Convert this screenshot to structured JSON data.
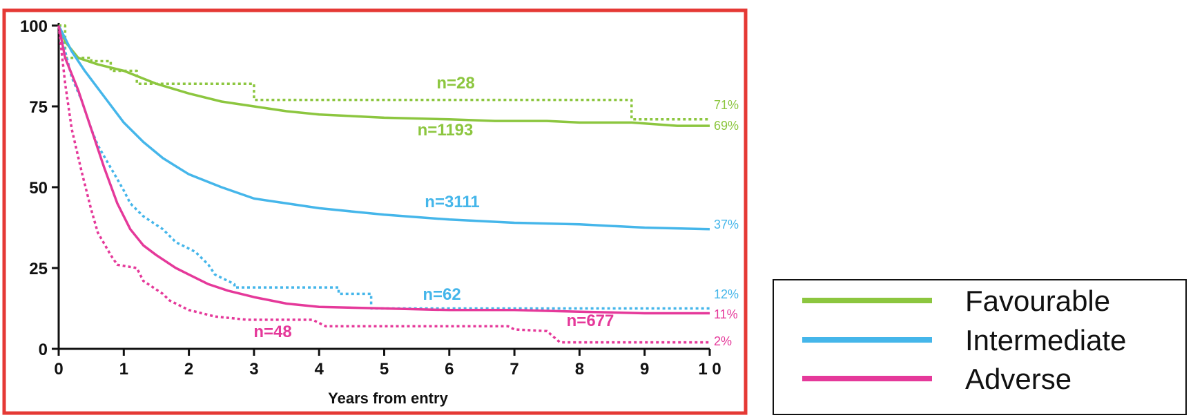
{
  "chart_data": {
    "type": "line",
    "title": "",
    "xlabel": "Years from entry",
    "ylabel": "",
    "xlim": [
      0,
      10
    ],
    "ylim": [
      0,
      100
    ],
    "x_ticks": [
      0,
      1,
      2,
      3,
      4,
      5,
      6,
      7,
      8,
      9,
      10
    ],
    "x_tick_labels": [
      "0",
      "1",
      "2",
      "3",
      "4",
      "5",
      "6",
      "7",
      "8",
      "9",
      "1 0"
    ],
    "y_ticks": [
      0,
      25,
      50,
      75,
      100
    ],
    "y_tick_labels": [
      "0",
      "25",
      "50",
      "75",
      "100"
    ],
    "grid": false,
    "frame_color": "#e53935",
    "legend": {
      "position": "bottom-right",
      "entries": [
        {
          "label": "Favourable",
          "color": "#8cc63f"
        },
        {
          "label": "Intermediate",
          "color": "#45b6ea"
        },
        {
          "label": "Adverse",
          "color": "#e5399a"
        }
      ]
    },
    "series": [
      {
        "group": "Favourable",
        "style": "solid",
        "color": "#8cc63f",
        "annotation": "n=1193",
        "end_label": "69%",
        "points": [
          [
            0,
            100
          ],
          [
            0.1,
            95
          ],
          [
            0.3,
            90
          ],
          [
            0.6,
            88
          ],
          [
            1.0,
            86
          ],
          [
            1.5,
            82
          ],
          [
            2.0,
            79
          ],
          [
            2.5,
            76.5
          ],
          [
            3.0,
            75
          ],
          [
            3.5,
            73.5
          ],
          [
            4.0,
            72.5
          ],
          [
            5.0,
            71.5
          ],
          [
            6.0,
            71
          ],
          [
            6.7,
            70.5
          ],
          [
            7.5,
            70.5
          ],
          [
            8.0,
            70
          ],
          [
            8.8,
            70
          ],
          [
            9.5,
            69
          ],
          [
            10,
            69
          ]
        ]
      },
      {
        "group": "Favourable",
        "style": "dotted",
        "color": "#8cc63f",
        "annotation": "n=28",
        "end_label": "71%",
        "points": [
          [
            0,
            100
          ],
          [
            0.1,
            100
          ],
          [
            0.1,
            90
          ],
          [
            0.5,
            90
          ],
          [
            0.5,
            89
          ],
          [
            0.8,
            89
          ],
          [
            0.8,
            86
          ],
          [
            1.2,
            86
          ],
          [
            1.2,
            82
          ],
          [
            3.0,
            82
          ],
          [
            3.0,
            77
          ],
          [
            8.8,
            77
          ],
          [
            8.8,
            71
          ],
          [
            10,
            71
          ]
        ]
      },
      {
        "group": "Intermediate",
        "style": "solid",
        "color": "#45b6ea",
        "annotation": "n=3111",
        "end_label": "37%",
        "points": [
          [
            0,
            100
          ],
          [
            0.2,
            92
          ],
          [
            0.4,
            86
          ],
          [
            0.7,
            78
          ],
          [
            1.0,
            70
          ],
          [
            1.3,
            64
          ],
          [
            1.6,
            59
          ],
          [
            2.0,
            54
          ],
          [
            2.5,
            50
          ],
          [
            3.0,
            46.5
          ],
          [
            3.5,
            45
          ],
          [
            4.0,
            43.5
          ],
          [
            5.0,
            41.5
          ],
          [
            6.0,
            40
          ],
          [
            7.0,
            39
          ],
          [
            8.0,
            38.5
          ],
          [
            9.0,
            37.5
          ],
          [
            10,
            37
          ]
        ]
      },
      {
        "group": "Intermediate",
        "style": "dotted",
        "color": "#45b6ea",
        "annotation": "n=62",
        "end_label": "12%",
        "points": [
          [
            0,
            100
          ],
          [
            0.2,
            84
          ],
          [
            0.35,
            77
          ],
          [
            0.5,
            68
          ],
          [
            0.6,
            63
          ],
          [
            0.8,
            56
          ],
          [
            1.0,
            49
          ],
          [
            1.1,
            45
          ],
          [
            1.3,
            41
          ],
          [
            1.6,
            37
          ],
          [
            1.8,
            33
          ],
          [
            2.1,
            30
          ],
          [
            2.3,
            26
          ],
          [
            2.4,
            23
          ],
          [
            2.7,
            20
          ],
          [
            2.7,
            19
          ],
          [
            3.0,
            19
          ],
          [
            4.3,
            19
          ],
          [
            4.3,
            17
          ],
          [
            4.8,
            17
          ],
          [
            4.8,
            12.5
          ],
          [
            10,
            12.5
          ]
        ]
      },
      {
        "group": "Adverse",
        "style": "solid",
        "color": "#e5399a",
        "annotation": "n=677",
        "end_label": "11%",
        "points": [
          [
            0,
            100
          ],
          [
            0.1,
            90
          ],
          [
            0.3,
            80
          ],
          [
            0.5,
            68
          ],
          [
            0.7,
            56
          ],
          [
            0.9,
            45
          ],
          [
            1.1,
            37
          ],
          [
            1.3,
            32
          ],
          [
            1.5,
            29
          ],
          [
            1.8,
            25
          ],
          [
            2.0,
            23
          ],
          [
            2.3,
            20
          ],
          [
            2.6,
            18
          ],
          [
            3.0,
            16
          ],
          [
            3.5,
            14
          ],
          [
            4.0,
            13
          ],
          [
            5.0,
            12.5
          ],
          [
            6.0,
            12
          ],
          [
            7.0,
            12
          ],
          [
            8.0,
            11.5
          ],
          [
            9.0,
            11
          ],
          [
            10,
            11
          ]
        ]
      },
      {
        "group": "Adverse",
        "style": "dotted",
        "color": "#e5399a",
        "annotation": "n=48",
        "end_label": "2%",
        "points": [
          [
            0,
            100
          ],
          [
            0.1,
            82
          ],
          [
            0.2,
            68
          ],
          [
            0.35,
            55
          ],
          [
            0.5,
            43
          ],
          [
            0.6,
            36
          ],
          [
            0.8,
            29
          ],
          [
            0.9,
            26
          ],
          [
            1.2,
            25
          ],
          [
            1.3,
            21
          ],
          [
            1.6,
            17
          ],
          [
            1.7,
            15
          ],
          [
            2.0,
            12
          ],
          [
            2.4,
            10
          ],
          [
            2.9,
            9
          ],
          [
            3.9,
            9
          ],
          [
            4.1,
            7
          ],
          [
            6.9,
            7
          ],
          [
            7.0,
            6
          ],
          [
            7.5,
            5.5
          ],
          [
            7.7,
            2
          ],
          [
            10,
            2
          ]
        ]
      }
    ]
  }
}
